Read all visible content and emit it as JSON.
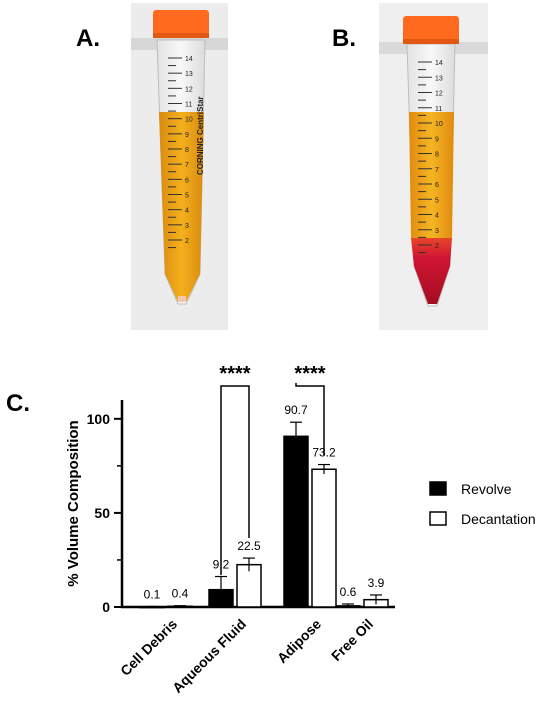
{
  "panels": {
    "a": "A.",
    "b": "B.",
    "c": "C."
  },
  "colors": {
    "orange_cap": "#ff6a1f",
    "fat_yellow": "#f0a818",
    "blood_red": "#c8102e",
    "photo_bg": "#efefef"
  },
  "tube_scale_labels": [
    "14",
    "13",
    "12",
    "11",
    "10",
    "9",
    "8",
    "7",
    "6",
    "5",
    "4",
    "3",
    "2"
  ],
  "tube_brand": "CORNING CentriStar",
  "chart_data": {
    "type": "bar",
    "categories": [
      "Cell Debris",
      "Aqueous Fluid",
      "Adipose",
      "Free Oil"
    ],
    "ylabel": "% Volume  Composition",
    "xlabel": "",
    "ylim": [
      0,
      110
    ],
    "yticks": [
      0,
      50,
      100
    ],
    "series": [
      {
        "name": "Revolve",
        "color": "#000000",
        "values": [
          0.1,
          9.2,
          90.7,
          0.6
        ],
        "errors": [
          0.2,
          7.0,
          7.5,
          1.0
        ]
      },
      {
        "name": "Decantation",
        "color": "#ffffff",
        "values": [
          0.4,
          22.5,
          73.2,
          3.9
        ],
        "errors": [
          0.3,
          3.5,
          2.5,
          2.5
        ]
      }
    ],
    "value_labels": [
      [
        "0.1",
        "9.2",
        "90.7",
        "0.6"
      ],
      [
        "0.4",
        "22.5",
        "73.2",
        "3.9"
      ]
    ],
    "significance": [
      {
        "category": "Aqueous Fluid",
        "label": "****"
      },
      {
        "category": "Adipose",
        "label": "****"
      }
    ],
    "legend_position": "right"
  }
}
